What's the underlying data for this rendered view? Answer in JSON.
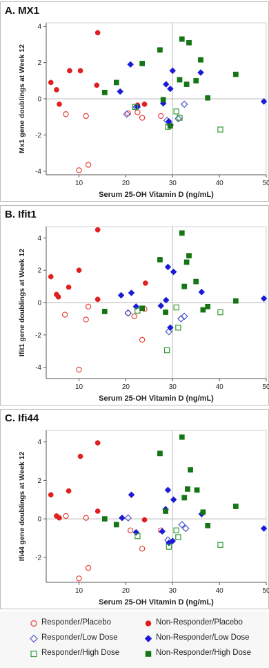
{
  "chart_data": [
    {
      "type": "scatter",
      "title": "A. MX1",
      "xlabel": "Serum 25-OH Vitamin D (ng/mL)",
      "ylabel": "Mx1 gene doublings at Week 12",
      "xlim": [
        3,
        50
      ],
      "ylim": [
        -4.2,
        4.2
      ],
      "xticks": [
        10,
        20,
        30,
        40,
        50
      ],
      "yticks": [
        -4,
        -2,
        0,
        2,
        4
      ],
      "reference_lines": {
        "x": 30,
        "y": 0
      },
      "series": [
        {
          "name": "Responder/Placebo",
          "marker": "open-circle",
          "color": "#e8413a",
          "points": [
            [
              7.2,
              -0.85
            ],
            [
              11.5,
              -0.95
            ],
            [
              12.0,
              -3.65
            ],
            [
              10.0,
              -3.95
            ],
            [
              20.5,
              -0.8
            ],
            [
              22.5,
              -0.75
            ],
            [
              23.5,
              -1.05
            ],
            [
              27.5,
              -0.95
            ]
          ]
        },
        {
          "name": "Non-Responder/Placebo",
          "marker": "filled-circle",
          "color": "#e02020",
          "points": [
            [
              4.0,
              0.9
            ],
            [
              5.2,
              0.5
            ],
            [
              5.8,
              -0.3
            ],
            [
              8.0,
              1.55
            ],
            [
              10.3,
              1.55
            ],
            [
              13.8,
              0.75
            ],
            [
              14.0,
              3.65
            ],
            [
              22.5,
              -0.35
            ],
            [
              24.0,
              -0.3
            ]
          ]
        },
        {
          "name": "Responder/Low Dose",
          "marker": "open-diamond",
          "color": "#4b56c8",
          "points": [
            [
              20.2,
              -0.85
            ],
            [
              22.2,
              -0.45
            ],
            [
              28.8,
              -1.2
            ],
            [
              29.5,
              -1.45
            ],
            [
              31.2,
              -1.1
            ],
            [
              32.5,
              -0.3
            ]
          ]
        },
        {
          "name": "Non-Responder/Low Dose",
          "marker": "filled-diamond",
          "color": "#1a1ad8",
          "points": [
            [
              18.8,
              0.4
            ],
            [
              21.0,
              1.9
            ],
            [
              22.5,
              -0.45
            ],
            [
              28.0,
              -0.25
            ],
            [
              28.6,
              0.8
            ],
            [
              29.2,
              -1.25
            ],
            [
              29.5,
              0.55
            ],
            [
              30.0,
              1.55
            ],
            [
              36.0,
              1.45
            ],
            [
              49.5,
              -0.15
            ]
          ]
        },
        {
          "name": "Responder/High Dose",
          "marker": "open-square",
          "color": "#2e9a2e",
          "points": [
            [
              22.0,
              -0.45
            ],
            [
              29.0,
              -1.55
            ],
            [
              30.8,
              -0.7
            ],
            [
              31.5,
              -1.05
            ],
            [
              40.2,
              -1.7
            ]
          ]
        },
        {
          "name": "Non-Responder/High Dose",
          "marker": "filled-square",
          "color": "#157515",
          "points": [
            [
              15.5,
              0.35
            ],
            [
              18.0,
              0.9
            ],
            [
              23.5,
              1.95
            ],
            [
              27.3,
              2.7
            ],
            [
              28.0,
              -0.05
            ],
            [
              29.5,
              -1.5
            ],
            [
              31.5,
              1.05
            ],
            [
              32.0,
              3.3
            ],
            [
              33.0,
              0.8
            ],
            [
              33.5,
              3.1
            ],
            [
              35.0,
              1.0
            ],
            [
              36.0,
              2.15
            ],
            [
              37.5,
              0.05
            ],
            [
              43.5,
              1.35
            ]
          ]
        }
      ]
    },
    {
      "type": "scatter",
      "title": "B. Ifit1",
      "xlabel": "Serum 25-OH Vitamin D (ng/mL)",
      "ylabel": "Ifit1 gene doublings at Week 12",
      "xlim": [
        3,
        50
      ],
      "ylim": [
        -4.7,
        4.7
      ],
      "xticks": [
        10,
        20,
        30,
        40,
        50
      ],
      "yticks": [
        -4,
        -2,
        0,
        2,
        4
      ],
      "reference_lines": {
        "x": 30,
        "y": 0
      },
      "series": [
        {
          "name": "Responder/Placebo",
          "marker": "open-circle",
          "color": "#e8413a",
          "points": [
            [
              7.0,
              -0.75
            ],
            [
              11.5,
              -1.05
            ],
            [
              12.0,
              -0.25
            ],
            [
              10.0,
              -4.15
            ],
            [
              20.5,
              -0.65
            ],
            [
              21.8,
              -0.85
            ],
            [
              23.5,
              -2.3
            ],
            [
              24.0,
              -0.4
            ]
          ]
        },
        {
          "name": "Non-Responder/Placebo",
          "marker": "filled-circle",
          "color": "#e02020",
          "points": [
            [
              4.0,
              1.6
            ],
            [
              5.2,
              0.5
            ],
            [
              5.6,
              0.35
            ],
            [
              7.8,
              0.95
            ],
            [
              10.0,
              2.0
            ],
            [
              14.0,
              0.2
            ],
            [
              14.0,
              4.5
            ],
            [
              24.2,
              1.2
            ]
          ]
        },
        {
          "name": "Responder/Low Dose",
          "marker": "open-diamond",
          "color": "#4b56c8",
          "points": [
            [
              20.5,
              -0.65
            ],
            [
              29.2,
              -1.8
            ],
            [
              31.8,
              -1.0
            ],
            [
              32.5,
              -0.85
            ]
          ]
        },
        {
          "name": "Non-Responder/Low Dose",
          "marker": "filled-diamond",
          "color": "#1a1ad8",
          "points": [
            [
              19.0,
              0.45
            ],
            [
              21.2,
              0.6
            ],
            [
              22.2,
              -0.25
            ],
            [
              27.5,
              -0.2
            ],
            [
              28.6,
              0.15
            ],
            [
              29.0,
              2.2
            ],
            [
              29.5,
              -1.55
            ],
            [
              30.2,
              1.9
            ],
            [
              36.2,
              0.65
            ],
            [
              49.5,
              0.25
            ]
          ]
        },
        {
          "name": "Responder/High Dose",
          "marker": "open-square",
          "color": "#2e9a2e",
          "points": [
            [
              22.5,
              -0.5
            ],
            [
              28.8,
              -2.95
            ],
            [
              30.8,
              -0.3
            ],
            [
              31.2,
              -1.55
            ],
            [
              40.2,
              -0.6
            ]
          ]
        },
        {
          "name": "Non-Responder/High Dose",
          "marker": "filled-square",
          "color": "#157515",
          "points": [
            [
              15.5,
              -0.55
            ],
            [
              23.5,
              -0.35
            ],
            [
              27.3,
              2.65
            ],
            [
              28.5,
              -0.6
            ],
            [
              32.0,
              4.3
            ],
            [
              32.5,
              1.0
            ],
            [
              33.0,
              2.5
            ],
            [
              33.5,
              2.9
            ],
            [
              35.0,
              1.3
            ],
            [
              36.5,
              -0.45
            ],
            [
              37.5,
              -0.25
            ],
            [
              43.5,
              0.1
            ]
          ]
        }
      ]
    },
    {
      "type": "scatter",
      "title": "C. Ifi44",
      "xlabel": "Serum 25-OH Vitamin D (ng/mL)",
      "ylabel": "Ifi44 gene doublings at Week 12",
      "xlim": [
        3,
        50
      ],
      "ylim": [
        -3.3,
        4.6
      ],
      "xticks": [
        10,
        20,
        30,
        40,
        50
      ],
      "yticks": [
        -2,
        0,
        2,
        4
      ],
      "reference_lines": {
        "x": 30,
        "y": 0
      },
      "series": [
        {
          "name": "Responder/Placebo",
          "marker": "open-circle",
          "color": "#e8413a",
          "points": [
            [
              7.2,
              0.15
            ],
            [
              11.5,
              0.05
            ],
            [
              12.0,
              -2.55
            ],
            [
              10.0,
              -3.1
            ],
            [
              21.0,
              -0.6
            ],
            [
              23.5,
              -1.55
            ],
            [
              27.5,
              -0.6
            ]
          ]
        },
        {
          "name": "Non-Responder/Placebo",
          "marker": "filled-circle",
          "color": "#e02020",
          "points": [
            [
              4.0,
              1.25
            ],
            [
              5.2,
              0.15
            ],
            [
              5.8,
              0.05
            ],
            [
              7.8,
              1.45
            ],
            [
              10.3,
              3.25
            ],
            [
              14.0,
              0.4
            ],
            [
              14.0,
              3.95
            ],
            [
              24.0,
              -0.05
            ]
          ]
        },
        {
          "name": "Responder/Low Dose",
          "marker": "open-diamond",
          "color": "#4b56c8",
          "points": [
            [
              20.5,
              0.05
            ],
            [
              29.0,
              -1.1
            ],
            [
              32.0,
              -0.3
            ],
            [
              32.8,
              -0.5
            ]
          ]
        },
        {
          "name": "Non-Responder/Low Dose",
          "marker": "filled-diamond",
          "color": "#1a1ad8",
          "points": [
            [
              19.2,
              0.05
            ],
            [
              21.2,
              1.25
            ],
            [
              22.2,
              -0.7
            ],
            [
              27.8,
              -0.65
            ],
            [
              28.5,
              0.5
            ],
            [
              29.0,
              1.5
            ],
            [
              29.2,
              -1.25
            ],
            [
              30.0,
              -1.15
            ],
            [
              30.2,
              1.0
            ],
            [
              36.2,
              0.25
            ],
            [
              49.5,
              -0.5
            ]
          ]
        },
        {
          "name": "Responder/High Dose",
          "marker": "open-square",
          "color": "#2e9a2e",
          "points": [
            [
              22.5,
              -0.9
            ],
            [
              29.2,
              -1.45
            ],
            [
              30.8,
              -0.6
            ],
            [
              31.2,
              -0.95
            ],
            [
              40.2,
              -1.35
            ]
          ]
        },
        {
          "name": "Non-Responder/High Dose",
          "marker": "filled-square",
          "color": "#157515",
          "points": [
            [
              15.5,
              0.0
            ],
            [
              18.0,
              -0.3
            ],
            [
              27.3,
              3.4
            ],
            [
              28.5,
              0.4
            ],
            [
              32.0,
              4.25
            ],
            [
              32.5,
              1.1
            ],
            [
              33.2,
              1.55
            ],
            [
              33.8,
              2.55
            ],
            [
              35.2,
              1.5
            ],
            [
              36.5,
              0.35
            ],
            [
              37.5,
              -0.35
            ],
            [
              43.5,
              0.65
            ]
          ]
        }
      ]
    }
  ],
  "legend": [
    {
      "label": "Responder/Placebo",
      "marker": "open-circle",
      "color": "#e8413a"
    },
    {
      "label": "Non-Responder/Placebo",
      "marker": "filled-circle",
      "color": "#e02020"
    },
    {
      "label": "Responder/Low Dose",
      "marker": "open-diamond",
      "color": "#4b56c8"
    },
    {
      "label": "Non-Responder/Low Dose",
      "marker": "filled-diamond",
      "color": "#1a1ad8"
    },
    {
      "label": "Responder/High Dose",
      "marker": "open-square",
      "color": "#2e9a2e"
    },
    {
      "label": "Non-Responder/High Dose",
      "marker": "filled-square",
      "color": "#157515"
    }
  ],
  "colors": {
    "grid_ref": "#b8b8b8",
    "axis": "#555555",
    "panel_border": "#bcbcbc"
  }
}
